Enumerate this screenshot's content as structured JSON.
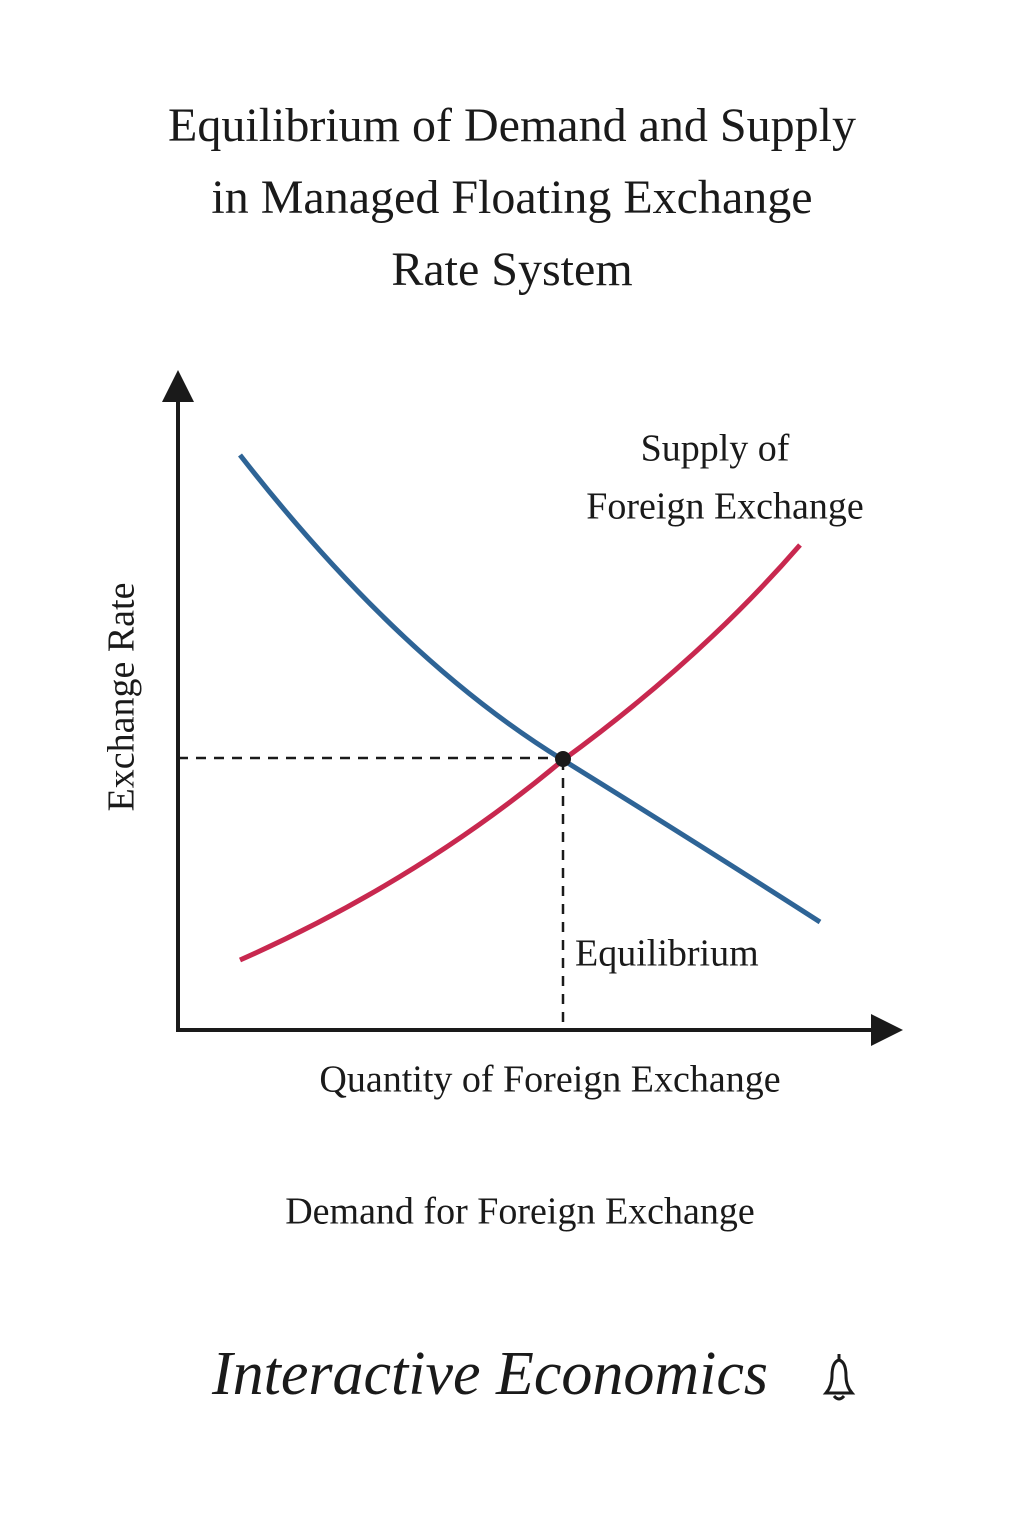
{
  "title": {
    "lines": [
      "Equilibrium of Demand and Supply",
      "in Managed Floating Exchange",
      "Rate System"
    ]
  },
  "diagram": {
    "y_axis_label": "Exchange Rate",
    "x_axis_label": "Quantity of Foreign Exchange",
    "supply_label": {
      "lines": [
        "Supply of",
        "Foreign Exchange"
      ]
    },
    "equilibrium_label": "Equilibrium",
    "demand_label": "Demand for Foreign Exchange"
  },
  "footer": {
    "brand": "Interactive Economics"
  }
}
